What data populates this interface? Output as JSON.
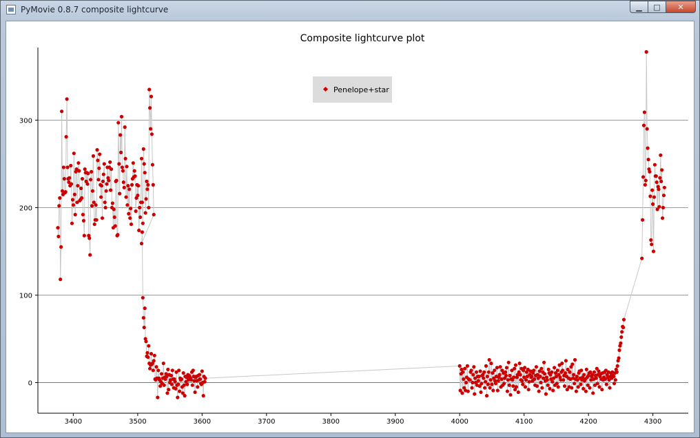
{
  "window": {
    "title": "PyMovie 0.8.7 composite lightcurve",
    "controls": {
      "minimize": "▁",
      "maximize": "□",
      "close": "✕"
    }
  },
  "chart_data": {
    "type": "scatter",
    "title": "Composite lightcurve plot",
    "xlabel": "",
    "ylabel": "",
    "xlim": [
      3345,
      4355
    ],
    "ylim": [
      -35,
      383
    ],
    "x_ticks": [
      3400,
      3500,
      3600,
      3700,
      3800,
      3900,
      4000,
      4100,
      4200,
      4300
    ],
    "y_ticks": [
      0,
      100,
      200,
      300
    ],
    "grid": "horizontal lines at y ticks",
    "legend": {
      "position": "top-center",
      "entries": [
        "Penelope+star"
      ]
    },
    "colors": {
      "marker": "#cc0000",
      "line": "#c8c8c8",
      "grid": "#9a9a9a"
    },
    "series": [
      {
        "name": "Penelope+star",
        "segments": [
          {
            "x_start": 3376,
            "x_step": 1,
            "values": [
              177,
              167,
              202,
              211,
              118,
              155,
              310,
              219,
              215,
              246,
              233,
              217,
              218,
              281,
              324,
              246,
              233,
              229,
              234,
              225,
              248,
              227,
              182,
              209,
              203,
              262,
              215,
              192,
              241,
              244,
              206,
              225,
              251,
              242,
              208,
              209,
              222,
              211,
              233,
              192,
              185,
              168,
              244,
              240,
              230,
              240,
              227,
              239,
              168,
              165,
              146,
              232,
              241,
              202,
              219,
              259,
              206,
              181,
              186,
              203,
              186,
              266,
              254,
              232,
              245,
              261,
              226,
              212,
              225,
              188,
              230,
              238,
              250,
              206,
              200,
              219,
              227,
              246,
              234,
              231,
              246,
              252,
              220,
              244,
              200,
              205,
              177,
              198,
              189,
              179,
              230,
              231,
              168,
              169,
              297,
              250,
              216,
              283,
              263,
              304,
              246,
              242,
              229,
              223,
              292,
              256,
              212,
              247,
              203,
              225,
              193,
              221,
              188,
              199,
              181,
              226,
              233,
              251,
              235,
              242,
              236,
              196,
              211,
              226,
              214,
              225,
              174,
              200,
              189,
              206,
              256,
              206,
              182,
              267,
              250,
              240,
              194,
              210,
              230,
              221,
              226,
              200,
              335,
              314,
              290,
              327,
              284,
              249,
              226,
              192
            ]
          },
          {
            "x_start": 3506,
            "x_step": 1,
            "values": [
              159,
              172,
              97,
              74,
              63,
              85,
              50,
              47,
              30,
              34,
              29,
              42,
              22,
              16,
              20,
              33,
              21,
              22,
              14,
              25,
              31,
              4,
              3,
              18,
              5,
              -17,
              14,
              5,
              3,
              -4,
              1,
              10,
              -1,
              5,
              22,
              -3,
              6,
              4,
              10,
              7,
              -12,
              15,
              -8,
              9,
              0,
              3,
              8,
              -2,
              14,
              4,
              -6,
              4,
              1,
              -7,
              12,
              -3,
              -17,
              -2,
              14,
              -10,
              5,
              3,
              4,
              -5,
              -12,
              11,
              -3,
              -15,
              7,
              1,
              6,
              -2,
              9,
              3,
              8,
              6,
              5,
              3,
              12,
              -3,
              14,
              7,
              2,
              -11,
              6,
              7,
              2,
              -5,
              8,
              3,
              9,
              4,
              -1,
              -2,
              13,
              0,
              -15,
              7,
              1,
              5
            ]
          },
          {
            "x_start": 4000,
            "x_step": 1,
            "values": [
              19,
              -9,
              10,
              15,
              -12,
              12,
              4,
              -6,
              16,
              -9,
              0,
              6,
              19,
              -10,
              4,
              3,
              3,
              12,
              14,
              -6,
              0,
              9,
              18,
              -13,
              5,
              0,
              12,
              -3,
              7,
              2,
              7,
              -4,
              13,
              -11,
              -1,
              8,
              9,
              5,
              12,
              -6,
              1,
              19,
              -15,
              7,
              -2,
              12,
              26,
              -6,
              3,
              22,
              -2,
              11,
              -9,
              5,
              14,
              2,
              -1,
              7,
              17,
              -9,
              2,
              6,
              9,
              18,
              -5,
              4,
              14,
              -3,
              11,
              -1,
              5,
              12,
              8,
              17,
              -10,
              3,
              23,
              -3,
              8,
              -14,
              4,
              14,
              3,
              -4,
              6,
              16,
              -8,
              20,
              -5,
              6,
              9,
              -11,
              12,
              22,
              9,
              3,
              16,
              2,
              -2,
              14,
              6,
              17,
              -5,
              3,
              12,
              7,
              15,
              -8,
              1,
              9,
              13,
              6,
              7,
              2,
              11,
              14,
              4,
              -3,
              8,
              18,
              -4,
              9,
              5,
              -10,
              13,
              7,
              0,
              16,
              -6,
              12,
              5,
              23,
              10,
              2,
              -13,
              6,
              3,
              -3,
              15,
              11,
              -7,
              9,
              4,
              12,
              1,
              -9,
              5,
              17,
              -3,
              11,
              7,
              -1,
              14,
              -5,
              9,
              20,
              6,
              3,
              12,
              22,
              14,
              3,
              8,
              -4,
              11,
              25,
              7,
              -8,
              15,
              5,
              -5,
              12,
              4,
              18,
              -6,
              21,
              5,
              9,
              -1,
              26,
              4,
              -10,
              7,
              3,
              -5,
              11,
              13,
              5,
              -2,
              14,
              3,
              6,
              -7,
              9,
              2,
              4,
              -10,
              15,
              6,
              -3,
              8,
              11,
              -6,
              12,
              3,
              7,
              9,
              -12,
              4,
              12,
              -3,
              8,
              5,
              16,
              -1,
              9,
              13,
              -5,
              7,
              10,
              4,
              -8,
              11,
              3,
              6,
              12,
              4,
              14,
              -2,
              9,
              6,
              12,
              3,
              -6,
              7,
              11,
              5,
              12,
              8,
              7,
              -1,
              11,
              3,
              15,
              12,
              19,
              25,
              28,
              37,
              42,
              45,
              52,
              58,
              64,
              63,
              72
            ]
          },
          {
            "x_start": 4283,
            "x_step": 1,
            "values": [
              142,
              186,
              235,
              294,
              309,
              226,
              231,
              378,
              290,
              268,
              255,
              244,
              241,
              213,
              163,
              158,
              220,
              204,
              150,
              212,
              249,
              236,
              236,
              229,
              198,
              224,
              221,
              201,
              234,
              260,
              230,
              243,
              188,
              200,
              214,
              223
            ]
          }
        ]
      }
    ]
  }
}
